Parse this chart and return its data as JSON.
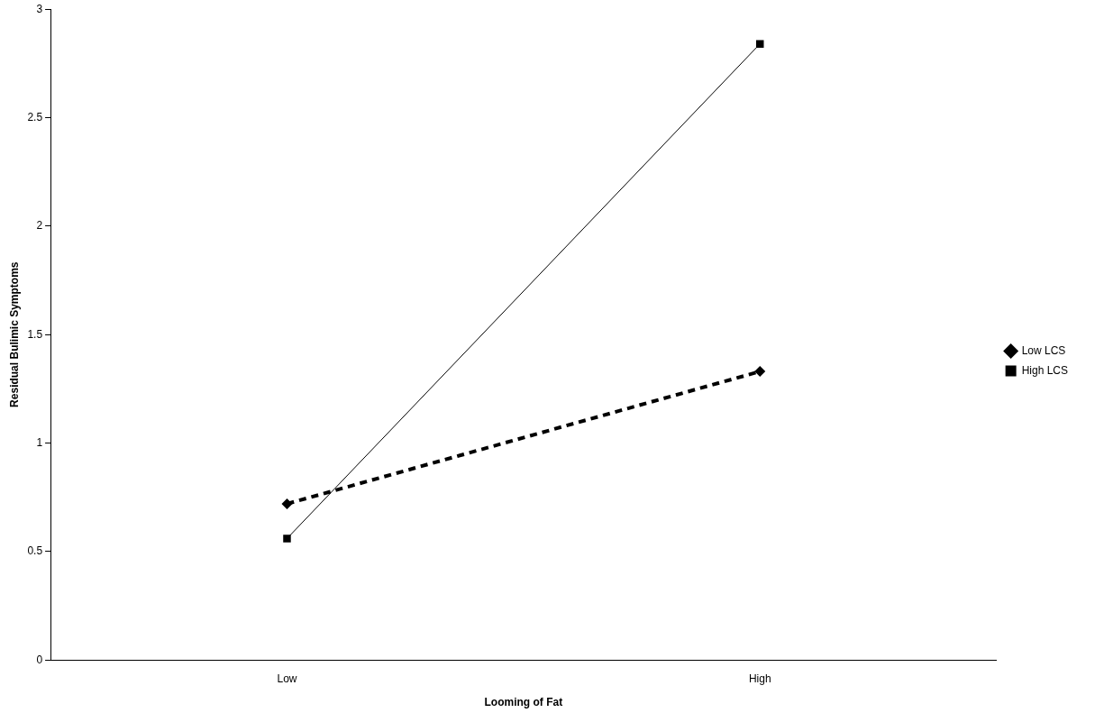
{
  "chart_data": {
    "type": "line",
    "xlabel": "Looming of Fat",
    "ylabel": "Residual Bulimic Symptoms",
    "categories": [
      "Low",
      "High"
    ],
    "series": [
      {
        "name": "Low LCS",
        "color": "#000000",
        "values": [
          0.72,
          1.33
        ],
        "marker": "diamond",
        "line_style": "dashed"
      },
      {
        "name": "High LCS",
        "color": "#000000",
        "values": [
          0.56,
          2.84
        ],
        "marker": "square",
        "line_style": "solid"
      }
    ],
    "ylim": [
      0,
      3
    ],
    "yticks": [
      0,
      0.5,
      1,
      1.5,
      2,
      2.5,
      3
    ],
    "grid": false,
    "legend": "right"
  }
}
